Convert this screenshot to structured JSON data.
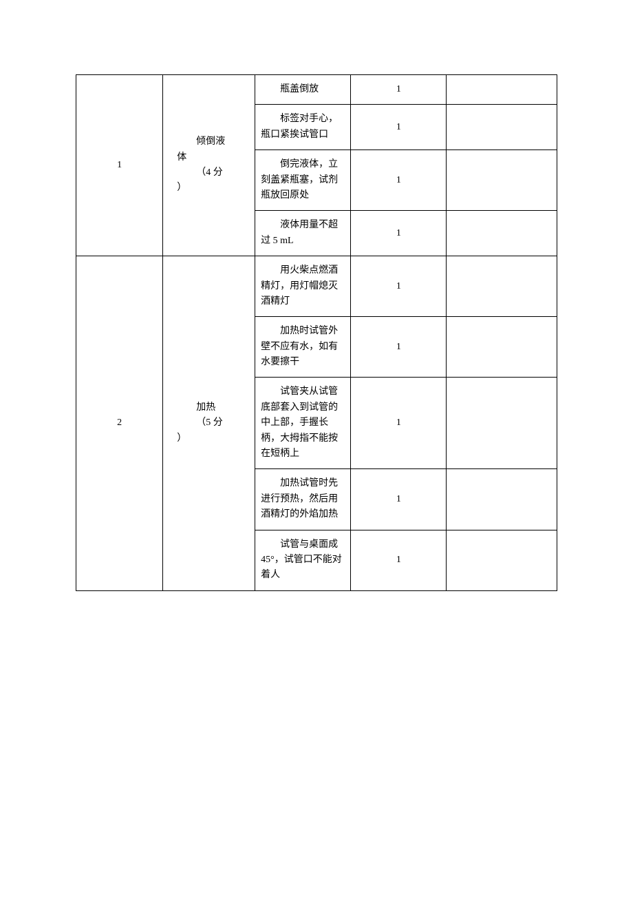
{
  "table": {
    "border_color": "#000000",
    "background_color": "#ffffff",
    "text_color": "#000000",
    "font_size": 14,
    "columns": {
      "num_width": 118,
      "step_width": 125,
      "detail_width": 130,
      "score_width": 130,
      "blank_width": 150
    },
    "groups": [
      {
        "num": "1",
        "step_line1": "倾倒液",
        "step_line2_prefix": "体",
        "step_line3": "（4 分",
        "step_line4": "）",
        "rows": [
          {
            "detail_first": "瓶盖倒",
            "detail_rest": "放",
            "score": "1"
          },
          {
            "detail_first": "标签对",
            "detail_rest": "手心，瓶口紧挨试管口",
            "score": "1"
          },
          {
            "detail_first": "倒完液",
            "detail_rest": "体，立刻盖紧瓶塞，试剂瓶放回原处",
            "score": "1"
          },
          {
            "detail_first": "液体用",
            "detail_rest": "量不超过 5 mL",
            "score": "1"
          }
        ]
      },
      {
        "num": "2",
        "step_line1": "加热",
        "step_line3": "（5 分",
        "step_line4": "）",
        "rows": [
          {
            "detail_first": "用火柴",
            "detail_rest": "点燃酒精灯，用灯帽熄灭酒精灯",
            "score": "1"
          },
          {
            "detail_first": "加热时",
            "detail_rest": "试管外壁不应有水，如有水要擦干",
            "score": "1"
          },
          {
            "detail_first": "试管夹",
            "detail_rest": "从试管底部套入到试管的中上部，手握长柄，大拇指不能按在短柄上",
            "score": "1"
          },
          {
            "detail_first": "加热试",
            "detail_rest": "管时先进行预热，然后用酒精灯的外焰加热",
            "score": "1"
          },
          {
            "detail_first": "试管与",
            "detail_rest": "桌面成 45°，试管口不能对着人",
            "score": "1"
          }
        ]
      }
    ]
  }
}
